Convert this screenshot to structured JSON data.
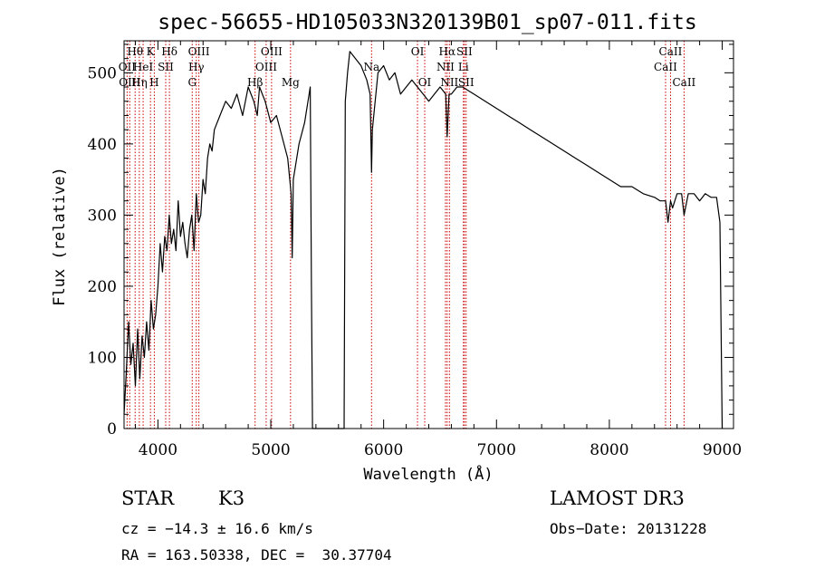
{
  "chart_data": {
    "type": "line",
    "title": "spec-56655-HD105033N320139B01_sp07-011.fits",
    "xlabel": "Wavelength (Å)",
    "ylabel": "Flux (relative)",
    "xlim": [
      3700,
      9100
    ],
    "ylim": [
      0,
      545
    ],
    "xticks": [
      4000,
      5000,
      6000,
      7000,
      8000,
      9000
    ],
    "yticks": [
      0,
      100,
      200,
      300,
      400,
      500
    ],
    "grid": false,
    "line_color": "#000000",
    "marker_color": "#cc0000",
    "series": [
      {
        "x": [
          3700,
          3720,
          3740,
          3760,
          3780,
          3800,
          3820,
          3840,
          3860,
          3880,
          3900,
          3920,
          3940,
          3960,
          3980,
          4000,
          4020,
          4040,
          4060,
          4080,
          4100,
          4120,
          4140,
          4160,
          4180,
          4200,
          4220,
          4240,
          4260,
          4280,
          4300,
          4320,
          4340,
          4360,
          4380,
          4400,
          4420,
          4440,
          4460,
          4480,
          4500,
          4550,
          4600,
          4650,
          4700,
          4750,
          4800,
          4850,
          4880,
          4900,
          4950,
          5000,
          5050,
          5100,
          5150,
          5180,
          5190,
          5200,
          5250,
          5300,
          5330,
          5350,
          5360,
          5370,
          5650,
          5660,
          5680,
          5700,
          5750,
          5800,
          5850,
          5880,
          5893,
          5900,
          5950,
          6000,
          6050,
          6100,
          6150,
          6200,
          6250,
          6300,
          6350,
          6400,
          6450,
          6500,
          6550,
          6563,
          6580,
          6600,
          6650,
          6700,
          6750,
          6800,
          6900,
          7000,
          7100,
          7200,
          7300,
          7400,
          7500,
          7600,
          7700,
          7800,
          7900,
          8000,
          8100,
          8200,
          8300,
          8400,
          8450,
          8498,
          8520,
          8542,
          8560,
          8600,
          8640,
          8662,
          8700,
          8750,
          8800,
          8850,
          8900,
          8950,
          8980,
          9000
        ],
        "y": [
          20,
          80,
          150,
          90,
          120,
          60,
          140,
          70,
          130,
          100,
          150,
          110,
          180,
          140,
          160,
          200,
          260,
          220,
          270,
          250,
          300,
          260,
          280,
          250,
          320,
          270,
          290,
          260,
          240,
          280,
          300,
          250,
          330,
          290,
          300,
          350,
          330,
          380,
          400,
          390,
          420,
          440,
          460,
          450,
          470,
          440,
          480,
          460,
          440,
          480,
          460,
          430,
          440,
          410,
          380,
          330,
          240,
          350,
          400,
          430,
          460,
          480,
          200,
          0,
          0,
          460,
          500,
          530,
          520,
          510,
          490,
          470,
          360,
          420,
          500,
          510,
          490,
          500,
          470,
          480,
          490,
          480,
          470,
          460,
          470,
          480,
          470,
          410,
          470,
          470,
          480,
          480,
          475,
          470,
          460,
          450,
          440,
          430,
          420,
          410,
          400,
          390,
          380,
          370,
          360,
          350,
          340,
          340,
          330,
          325,
          320,
          320,
          290,
          320,
          310,
          330,
          330,
          300,
          330,
          330,
          320,
          330,
          325,
          325,
          290,
          0
        ]
      }
    ],
    "line_markers": [
      {
        "wl": 3727,
        "label": "OII",
        "row": 1
      },
      {
        "wl": 3750,
        "label": "OIII",
        "row": 2
      },
      {
        "wl": 3798,
        "label": "Hθ",
        "row": 0
      },
      {
        "wl": 3835,
        "label": "Hη",
        "row": 2
      },
      {
        "wl": 3869,
        "label": "HeI",
        "row": 1
      },
      {
        "wl": 3934,
        "label": "K",
        "row": 0
      },
      {
        "wl": 3968,
        "label": "H",
        "row": 2
      },
      {
        "wl": 4069,
        "label": "SII",
        "row": 1
      },
      {
        "wl": 4102,
        "label": "Hδ",
        "row": 0
      },
      {
        "wl": 4304,
        "label": "G",
        "row": 2
      },
      {
        "wl": 4340,
        "label": "Hγ",
        "row": 1
      },
      {
        "wl": 4363,
        "label": "OIII",
        "row": 0
      },
      {
        "wl": 4861,
        "label": "Hβ",
        "row": 2
      },
      {
        "wl": 4959,
        "label": "OIII",
        "row": 1
      },
      {
        "wl": 5007,
        "label": "OIII",
        "row": 0
      },
      {
        "wl": 5175,
        "label": "Mg",
        "row": 2
      },
      {
        "wl": 5893,
        "label": "Na",
        "row": 1
      },
      {
        "wl": 6300,
        "label": "OI",
        "row": 0
      },
      {
        "wl": 6364,
        "label": "OI",
        "row": 2
      },
      {
        "wl": 6548,
        "label": "NII",
        "row": 1
      },
      {
        "wl": 6563,
        "label": "Hα",
        "row": 0
      },
      {
        "wl": 6583,
        "label": "NII",
        "row": 2
      },
      {
        "wl": 6707,
        "label": "Li",
        "row": 1
      },
      {
        "wl": 6716,
        "label": "SII",
        "row": 0
      },
      {
        "wl": 6731,
        "label": "SII",
        "row": 2
      },
      {
        "wl": 8498,
        "label": "CaII",
        "row": 1
      },
      {
        "wl": 8542,
        "label": "CaII",
        "row": 0
      },
      {
        "wl": 8662,
        "label": "CaII",
        "row": 2
      }
    ]
  },
  "info": {
    "object_class": "STAR",
    "subclass": "K3",
    "survey": "LAMOST DR3",
    "redshift": "cz = −14.3 ± 16.6 km/s",
    "obs_date": "Obs−Date: 20131228",
    "coords": "RA = 163.50338, DEC =  30.37704"
  }
}
